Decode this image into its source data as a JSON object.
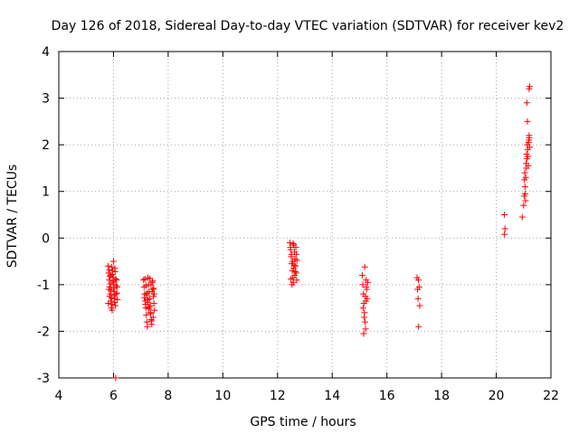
{
  "chart_data": {
    "type": "scatter",
    "title": "Day 126 of 2018, Sidereal Day-to-day VTEC variation (SDTVAR) for receiver kev2",
    "xlabel": "GPS time / hours",
    "ylabel": "SDTVAR / TECUs",
    "xlim": [
      4,
      22
    ],
    "ylim": [
      -3,
      4
    ],
    "xticks": [
      4,
      6,
      8,
      10,
      12,
      14,
      16,
      18,
      20,
      22
    ],
    "yticks": [
      -3,
      -2,
      -1,
      0,
      1,
      2,
      3,
      4
    ],
    "grid": true,
    "marker": "+",
    "color": "#ff0000",
    "series": [
      {
        "name": "kev2",
        "points": [
          [
            5.8,
            -0.6
          ],
          [
            5.82,
            -0.75
          ],
          [
            5.84,
            -0.9
          ],
          [
            5.86,
            -1.05
          ],
          [
            5.88,
            -1.2
          ],
          [
            5.9,
            -1.35
          ],
          [
            5.92,
            -1.5
          ],
          [
            5.85,
            -0.68
          ],
          [
            5.87,
            -0.82
          ],
          [
            5.89,
            -0.98
          ],
          [
            5.91,
            -1.12
          ],
          [
            5.93,
            -1.28
          ],
          [
            5.95,
            -1.42
          ],
          [
            5.97,
            -0.7
          ],
          [
            5.99,
            -0.85
          ],
          [
            6.01,
            -1.0
          ],
          [
            6.03,
            -1.15
          ],
          [
            6.05,
            -1.3
          ],
          [
            6.07,
            -1.45
          ],
          [
            5.94,
            -0.62
          ],
          [
            5.96,
            -0.78
          ],
          [
            5.98,
            -0.92
          ],
          [
            6.0,
            -1.08
          ],
          [
            6.02,
            -1.22
          ],
          [
            6.04,
            -1.38
          ],
          [
            6.06,
            -0.72
          ],
          [
            6.08,
            -0.88
          ],
          [
            6.1,
            -1.02
          ],
          [
            6.12,
            -1.18
          ],
          [
            6.14,
            -1.32
          ],
          [
            5.83,
            -1.1
          ],
          [
            5.86,
            -1.25
          ],
          [
            5.9,
            -0.8
          ],
          [
            5.95,
            -1.55
          ],
          [
            6.0,
            -0.95
          ],
          [
            6.05,
            -0.65
          ],
          [
            6.09,
            -1.2
          ],
          [
            5.81,
            -1.4
          ],
          [
            6.11,
            -0.9
          ],
          [
            6.13,
            -1.05
          ],
          [
            6.0,
            -0.5
          ],
          [
            6.08,
            -3.0
          ],
          [
            7.1,
            -0.9
          ],
          [
            7.12,
            -1.05
          ],
          [
            7.14,
            -1.2
          ],
          [
            7.16,
            -1.35
          ],
          [
            7.18,
            -1.5
          ],
          [
            7.2,
            -1.65
          ],
          [
            7.22,
            -1.8
          ],
          [
            7.24,
            -1.9
          ],
          [
            7.26,
            -0.85
          ],
          [
            7.28,
            -1.0
          ],
          [
            7.3,
            -1.15
          ],
          [
            7.32,
            -1.3
          ],
          [
            7.34,
            -1.45
          ],
          [
            7.36,
            -1.6
          ],
          [
            7.38,
            -1.75
          ],
          [
            7.4,
            -1.85
          ],
          [
            7.42,
            -0.95
          ],
          [
            7.44,
            -1.1
          ],
          [
            7.46,
            -1.25
          ],
          [
            7.48,
            -1.4
          ],
          [
            7.5,
            -1.55
          ],
          [
            7.15,
            -0.88
          ],
          [
            7.19,
            -1.02
          ],
          [
            7.23,
            -1.18
          ],
          [
            7.27,
            -1.32
          ],
          [
            7.31,
            -1.48
          ],
          [
            7.35,
            -1.62
          ],
          [
            7.39,
            -1.78
          ],
          [
            7.43,
            -0.92
          ],
          [
            7.47,
            -1.08
          ],
          [
            7.21,
            -1.22
          ],
          [
            7.25,
            -1.38
          ],
          [
            7.29,
            -1.52
          ],
          [
            7.33,
            -0.87
          ],
          [
            7.37,
            -1.0
          ],
          [
            7.41,
            -1.15
          ],
          [
            7.45,
            -1.7
          ],
          [
            7.13,
            -1.28
          ],
          [
            7.17,
            -1.42
          ],
          [
            7.49,
            -1.2
          ],
          [
            12.45,
            -0.1
          ],
          [
            12.48,
            -0.25
          ],
          [
            12.5,
            -0.4
          ],
          [
            12.52,
            -0.55
          ],
          [
            12.54,
            -0.7
          ],
          [
            12.56,
            -0.85
          ],
          [
            12.58,
            -0.95
          ],
          [
            12.6,
            -0.15
          ],
          [
            12.62,
            -0.3
          ],
          [
            12.64,
            -0.45
          ],
          [
            12.66,
            -0.6
          ],
          [
            12.68,
            -0.75
          ],
          [
            12.7,
            -0.9
          ],
          [
            12.47,
            -0.2
          ],
          [
            12.51,
            -0.35
          ],
          [
            12.55,
            -0.5
          ],
          [
            12.59,
            -0.65
          ],
          [
            12.63,
            -0.8
          ],
          [
            12.67,
            -0.2
          ],
          [
            12.69,
            -0.35
          ],
          [
            12.53,
            -1.0
          ],
          [
            12.57,
            -0.12
          ],
          [
            12.61,
            -0.58
          ],
          [
            12.65,
            -0.72
          ],
          [
            12.49,
            -0.88
          ],
          [
            12.71,
            -0.48
          ],
          [
            15.1,
            -0.8
          ],
          [
            15.12,
            -1.0
          ],
          [
            15.14,
            -1.2
          ],
          [
            15.16,
            -1.4
          ],
          [
            15.18,
            -1.6
          ],
          [
            15.2,
            -1.8
          ],
          [
            15.22,
            -1.95
          ],
          [
            15.24,
            -0.9
          ],
          [
            15.26,
            -1.1
          ],
          [
            15.28,
            -1.3
          ],
          [
            15.3,
            -0.95
          ],
          [
            15.13,
            -1.5
          ],
          [
            15.17,
            -1.7
          ],
          [
            15.21,
            -1.25
          ],
          [
            15.25,
            -1.05
          ],
          [
            15.19,
            -0.62
          ],
          [
            15.15,
            -2.05
          ],
          [
            15.23,
            -1.35
          ],
          [
            17.1,
            -0.85
          ],
          [
            17.15,
            -0.9
          ],
          [
            17.12,
            -1.1
          ],
          [
            17.18,
            -1.05
          ],
          [
            17.14,
            -1.3
          ],
          [
            17.2,
            -1.45
          ],
          [
            17.16,
            -1.9
          ],
          [
            20.3,
            0.5
          ],
          [
            20.32,
            0.2
          ],
          [
            20.3,
            0.08
          ],
          [
            20.95,
            0.45
          ],
          [
            21.0,
            0.7
          ],
          [
            21.02,
            0.9
          ],
          [
            21.05,
            1.1
          ],
          [
            21.08,
            1.3
          ],
          [
            21.1,
            1.5
          ],
          [
            21.12,
            1.7
          ],
          [
            21.15,
            1.9
          ],
          [
            21.18,
            2.05
          ],
          [
            21.2,
            2.2
          ],
          [
            21.03,
            1.25
          ],
          [
            21.06,
            0.95
          ],
          [
            21.09,
            1.6
          ],
          [
            21.11,
            1.8
          ],
          [
            21.13,
            2.0
          ],
          [
            21.16,
            1.75
          ],
          [
            21.19,
            2.1
          ],
          [
            21.22,
            1.95
          ],
          [
            21.07,
            0.8
          ],
          [
            21.14,
            2.5
          ],
          [
            21.12,
            2.9
          ],
          [
            21.2,
            3.2
          ],
          [
            21.22,
            3.25
          ],
          [
            21.04,
            1.4
          ],
          [
            21.17,
            1.55
          ],
          [
            21.21,
            2.15
          ]
        ]
      }
    ]
  }
}
